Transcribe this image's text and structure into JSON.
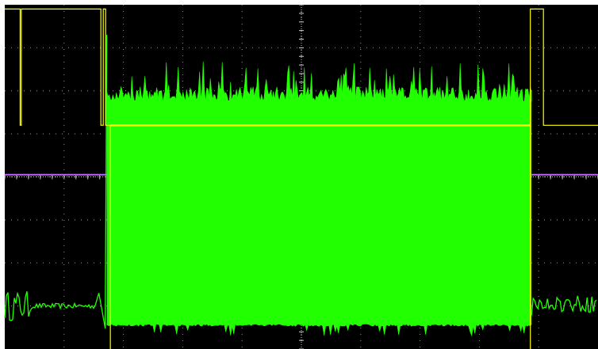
{
  "colors": {
    "background": "#000000",
    "grid": "#9a9a9a",
    "ch1": "#ffff00",
    "ch2": "#22ff00",
    "reference": "#c060ff",
    "frame": "#ffffff"
  },
  "chart_data": {
    "type": "line",
    "title": "",
    "xlabel": "",
    "ylabel": "",
    "grid": true,
    "legend": "none",
    "divisions": {
      "x": 10,
      "y": 8
    },
    "xlim": [
      0,
      10
    ],
    "ylim": [
      -4,
      4
    ],
    "series": [
      {
        "id": "ch1",
        "color": "#ffff00",
        "style": "digital",
        "x": [
          0,
          0.26,
          0.26,
          0.28,
          0.28,
          1.62,
          1.62,
          1.66,
          1.66,
          1.7,
          1.7,
          1.78,
          1.78,
          8.86,
          8.86,
          9.08,
          9.08,
          10
        ],
        "y": [
          3.9,
          3.9,
          1.2,
          1.2,
          3.9,
          3.9,
          1.2,
          1.2,
          3.9,
          3.9,
          1.2,
          1.2,
          1.2,
          1.2,
          3.9,
          3.9,
          1.2,
          1.2
        ]
      },
      {
        "id": "ch2",
        "color": "#22ff00",
        "style": "burst",
        "idle_level": -3.0,
        "idle_ripple": 0.12,
        "burst_start": 1.72,
        "burst_end": 8.88,
        "burst_high": 1.75,
        "burst_low": -3.42,
        "spike_top": 2.4,
        "tail_level": -3.2,
        "tail_ripple": 0.18
      },
      {
        "id": "ref",
        "color": "#c060ff",
        "style": "flat",
        "x": [
          0,
          10
        ],
        "y": [
          0.05,
          0.05
        ]
      }
    ]
  }
}
